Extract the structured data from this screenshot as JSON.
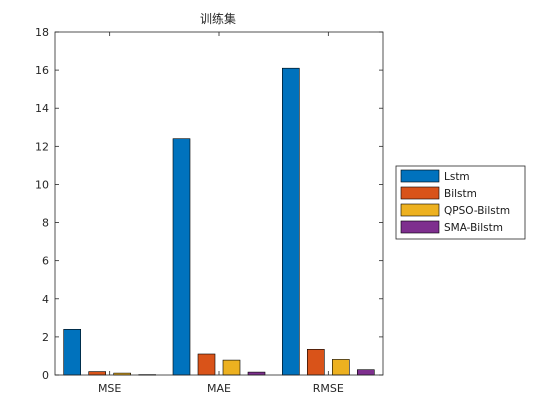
{
  "chart_data": {
    "type": "bar",
    "title": "训练集",
    "categories": [
      "MSE",
      "MAE",
      "RMSE"
    ],
    "series": [
      {
        "name": "Lstm",
        "color": "#0072BD",
        "values": [
          2.4,
          12.4,
          16.1
        ]
      },
      {
        "name": "Bilstm",
        "color": "#D95319",
        "values": [
          0.18,
          1.1,
          1.35
        ]
      },
      {
        "name": "QPSO-Bilstm",
        "color": "#EDB120",
        "values": [
          0.1,
          0.78,
          0.82
        ]
      },
      {
        "name": "SMA-Bilstm",
        "color": "#7E2F8E",
        "values": [
          0.02,
          0.15,
          0.28
        ]
      }
    ],
    "yticks": [
      "0",
      "2",
      "4",
      "6",
      "8",
      "10",
      "12",
      "14",
      "16",
      "18"
    ],
    "ylim": [
      0,
      18
    ],
    "xlabel": "",
    "ylabel": "",
    "legend_position": "outside-right",
    "grid": false
  }
}
